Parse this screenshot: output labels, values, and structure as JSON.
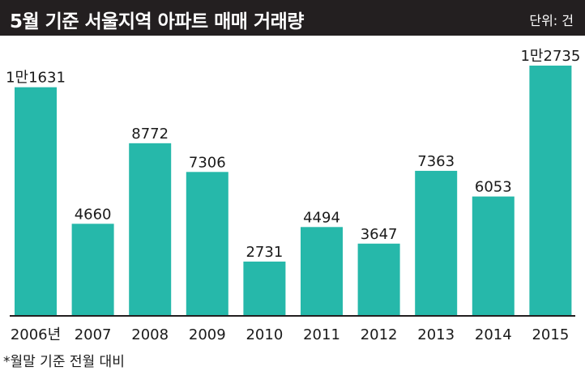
{
  "header": {
    "title": "5월 기준 서울지역 아파트 매매 거래량",
    "unit": "단위: 건"
  },
  "footnote": "*월말 기준 전월 대비",
  "colors": {
    "header_bg": "#231f20",
    "bar": "#26b8aa",
    "axis": "#231f20"
  },
  "chart_data": {
    "type": "bar",
    "categories": [
      "2006년",
      "2007",
      "2008",
      "2009",
      "2010",
      "2011",
      "2012",
      "2013",
      "2014",
      "2015"
    ],
    "values": [
      11631,
      4660,
      8772,
      7306,
      2731,
      4494,
      3647,
      7363,
      6053,
      12735
    ],
    "value_labels": [
      "1만1631",
      "4660",
      "8772",
      "7306",
      "2731",
      "4494",
      "3647",
      "7363",
      "6053",
      "1만2735"
    ],
    "title": "5월 기준 서울지역 아파트 매매 거래량",
    "xlabel": "",
    "ylabel": "",
    "ylim": [
      0,
      12735
    ],
    "grid": false,
    "legend": "none"
  }
}
